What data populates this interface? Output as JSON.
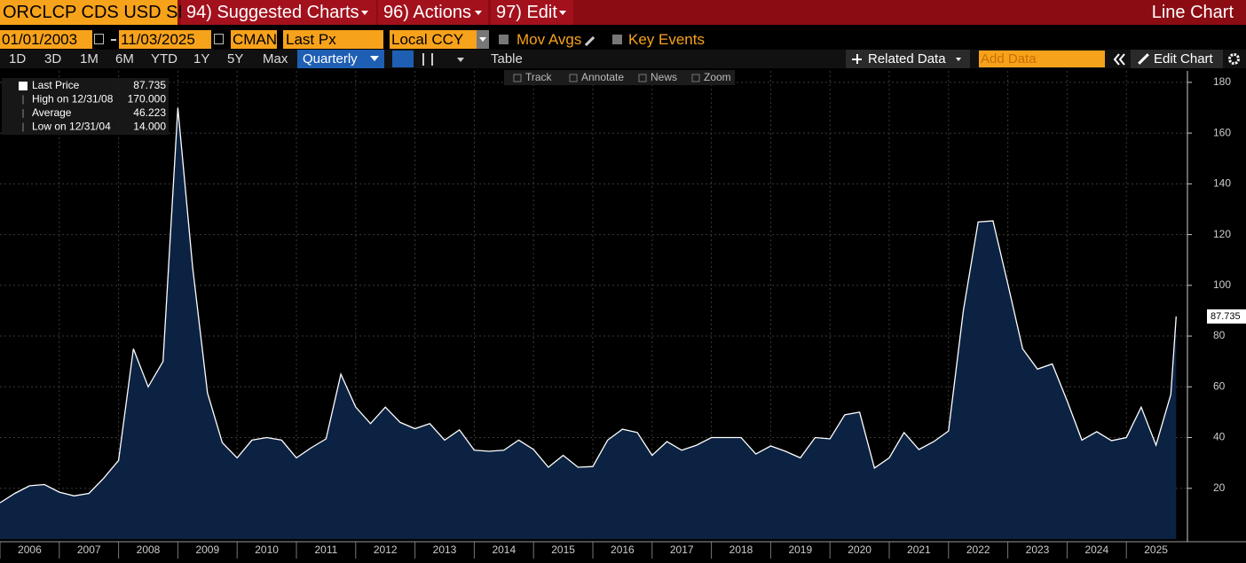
{
  "ui": {
    "top_bar": {
      "security": "ORCLCP CDS USD SR",
      "menus": [
        "94) Suggested Charts",
        "96) Actions",
        "97) Edit"
      ],
      "chart_type": "Line Chart"
    },
    "settings": {
      "start_date": "01/01/2003",
      "end_date": "11/03/2025",
      "source": "CMAN",
      "field": "Last Px",
      "currency": "Local CCY",
      "options": [
        "Mov Avgs",
        "Key Events"
      ]
    },
    "toolbar": {
      "ranges": [
        "1D",
        "3D",
        "1M",
        "6M",
        "YTD",
        "1Y",
        "5Y",
        "Max"
      ],
      "frequency": "Quarterly",
      "view": "Table",
      "related": "Related Data",
      "add_data": "Add Data",
      "edit": "Edit Chart"
    },
    "chart_tools": [
      "Track",
      "Annotate",
      "News",
      "Zoom"
    ]
  },
  "chart_data": {
    "type": "area",
    "grid": true,
    "stats": [
      {
        "name": "Last Price",
        "value": 87.735
      },
      {
        "name": "High on 12/31/08",
        "value": 170,
        "label": "170.000"
      },
      {
        "name": "Average",
        "value": 46.223
      },
      {
        "name": "Low on 12/31/04",
        "value": 14,
        "label": "14.000"
      }
    ],
    "x": [
      2006,
      2006.25,
      2006.5,
      2006.75,
      2007,
      2007.25,
      2007.5,
      2007.75,
      2008,
      2008.25,
      2008.5,
      2008.75,
      2009,
      2009.25,
      2009.5,
      2009.75,
      2010,
      2010.25,
      2010.5,
      2010.75,
      2011,
      2011.25,
      2011.5,
      2011.75,
      2012,
      2012.25,
      2012.5,
      2012.75,
      2013,
      2013.25,
      2013.5,
      2013.75,
      2014,
      2014.25,
      2014.5,
      2014.75,
      2015,
      2015.25,
      2015.5,
      2015.75,
      2016,
      2016.25,
      2016.5,
      2016.75,
      2017,
      2017.25,
      2017.5,
      2017.75,
      2018,
      2018.25,
      2018.5,
      2018.75,
      2019,
      2019.25,
      2019.5,
      2019.75,
      2020,
      2020.25,
      2020.5,
      2020.75,
      2021,
      2021.25,
      2021.5,
      2021.75,
      2022,
      2022.25,
      2022.5,
      2022.75,
      2023,
      2023.25,
      2023.5,
      2023.75,
      2024,
      2024.25,
      2024.5,
      2024.75,
      2025,
      2025.25,
      2025.5,
      2025.75,
      2025.84
    ],
    "series": [
      {
        "name": "Last Price",
        "color": "#ffffff",
        "fill": "#0c2242",
        "values": [
          14.3,
          18,
          21,
          21.5,
          18.5,
          17,
          18,
          24,
          31,
          75,
          60,
          70,
          170,
          107,
          57.6,
          38,
          32,
          39,
          40,
          39,
          32,
          36,
          39.5,
          65,
          52,
          45.5,
          52,
          46,
          43.5,
          45.5,
          39,
          43,
          35,
          34.6,
          35,
          39,
          35.3,
          28.3,
          33,
          28.3,
          28.6,
          39,
          43.3,
          42,
          33,
          38.4,
          35,
          37,
          40,
          40,
          40,
          33.5,
          36.7,
          34.6,
          32,
          40,
          39.5,
          49,
          50,
          28,
          32,
          42,
          35.3,
          38.4,
          42.6,
          90,
          125,
          125.4,
          100.6,
          75,
          67,
          69,
          54.5,
          39,
          42.3,
          38.8,
          40,
          52,
          37,
          57,
          87.735
        ]
      }
    ],
    "xlim": [
      2006,
      2026.03
    ],
    "xticks": [
      2006,
      2007,
      2008,
      2009,
      2010,
      2011,
      2012,
      2013,
      2014,
      2015,
      2016,
      2017,
      2018,
      2019,
      2020,
      2021,
      2022,
      2023,
      2024,
      2025
    ],
    "ylim": [
      0,
      184.5
    ],
    "yticks": [
      20,
      40,
      60,
      80,
      100,
      120,
      140,
      160,
      180
    ]
  }
}
